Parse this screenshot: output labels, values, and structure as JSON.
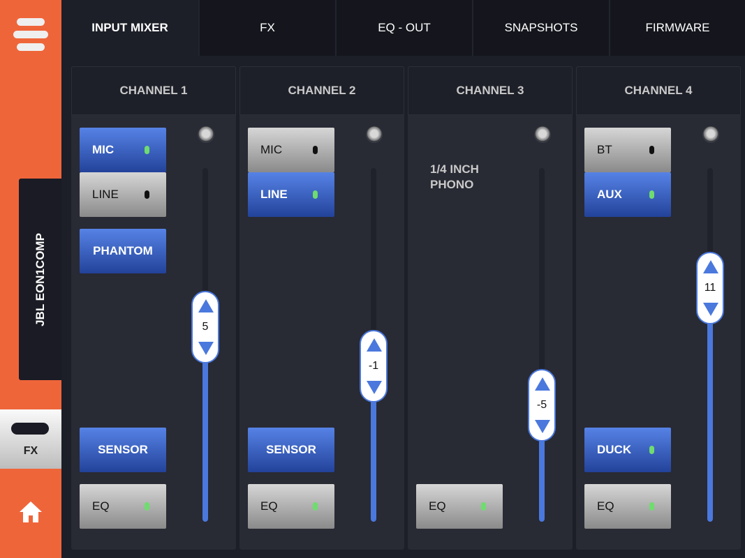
{
  "device_name": "JBL EON1COMP",
  "fx_label": "FX",
  "tabs": [
    {
      "label": "INPUT MIXER",
      "active": true
    },
    {
      "label": "FX"
    },
    {
      "label": "EQ - OUT"
    },
    {
      "label": "SNAPSHOTS"
    },
    {
      "label": "FIRMWARE"
    }
  ],
  "colors": {
    "accent": "#ef653a",
    "active_blue": "#4a78dd",
    "led_on": "#6fdc6f",
    "led_off": "#111111"
  },
  "channels": [
    {
      "title": "CHANNEL 1",
      "level": "5",
      "level_fraction": 0.55,
      "buttons": [
        {
          "label": "MIC",
          "on": true,
          "led": "on"
        },
        {
          "label": "LINE",
          "on": false,
          "led": "off"
        },
        {
          "label": "PHANTOM",
          "on": true
        },
        {
          "label": "SENSOR",
          "on": true
        },
        {
          "label": "EQ",
          "on": false,
          "led": "on"
        }
      ]
    },
    {
      "title": "CHANNEL 2",
      "level": "-1",
      "level_fraction": 0.44,
      "buttons": [
        {
          "label": "MIC",
          "on": false,
          "led": "off"
        },
        {
          "label": "LINE",
          "on": true,
          "led": "on"
        },
        {
          "label": "SENSOR",
          "on": true
        },
        {
          "label": "EQ",
          "on": false,
          "led": "on"
        }
      ]
    },
    {
      "title": "CHANNEL 3",
      "level": "-5",
      "level_fraction": 0.33,
      "source": "1/4 INCH\nPHONO",
      "buttons": [
        {
          "label": "EQ",
          "on": false,
          "led": "on"
        }
      ]
    },
    {
      "title": "CHANNEL 4",
      "level": "11",
      "level_fraction": 0.66,
      "buttons": [
        {
          "label": "BT",
          "on": false,
          "led": "off"
        },
        {
          "label": "AUX",
          "on": true,
          "led": "on"
        },
        {
          "label": "DUCK",
          "on": true,
          "led": "on"
        },
        {
          "label": "EQ",
          "on": false,
          "led": "on"
        }
      ]
    }
  ]
}
